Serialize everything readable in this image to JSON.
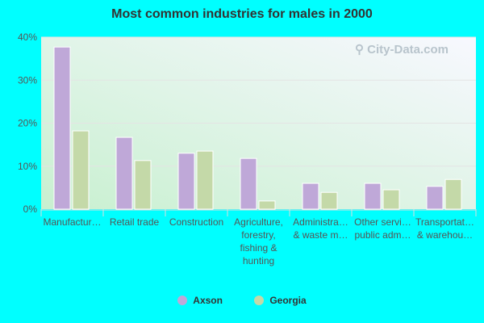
{
  "chart_data": {
    "type": "bar",
    "title": "Most common industries for males in 2000",
    "categories": [
      [
        "Manufactur…"
      ],
      [
        "Retail trade"
      ],
      [
        "Construction"
      ],
      [
        "Agriculture,",
        "forestry,",
        "fishing &",
        "hunting"
      ],
      [
        "Administra…",
        "& waste m…"
      ],
      [
        "Other servi…",
        "public adm…"
      ],
      [
        "Transportat…",
        "& warehou…"
      ]
    ],
    "series": [
      {
        "name": "Axson",
        "color": "#bfa8d8",
        "values": [
          37.7,
          16.7,
          13.0,
          11.8,
          6.0,
          6.0,
          5.3
        ]
      },
      {
        "name": "Georgia",
        "color": "#c4d9a8",
        "values": [
          18.2,
          11.3,
          13.5,
          1.9,
          3.9,
          4.5,
          6.9
        ]
      }
    ],
    "yticks": [
      "0%",
      "10%",
      "20%",
      "30%",
      "40%"
    ],
    "ylim": [
      0,
      40
    ],
    "grid": true,
    "legend": "bottom"
  },
  "watermark": "City-Data.com"
}
